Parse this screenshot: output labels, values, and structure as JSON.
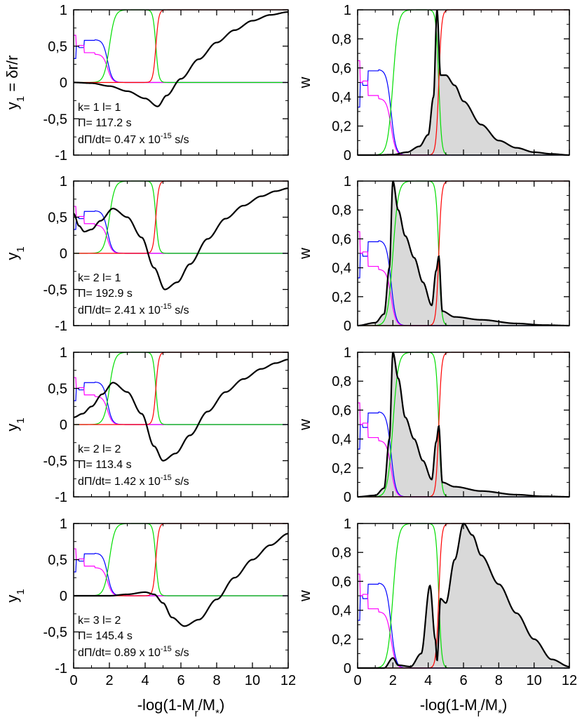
{
  "chart_data": {
    "type": "line",
    "layout": "4x2 grid",
    "xlabel": "-log(1-M_r/M_*)",
    "xlim": [
      0,
      12
    ],
    "ylim": [
      -1,
      1
    ],
    "wlim": [
      0,
      1
    ],
    "xticks": [
      "0",
      "2",
      "4",
      "6",
      "8",
      "10",
      "12"
    ],
    "yticks": [
      "-1",
      "-0,5",
      "0",
      "0,5",
      "1"
    ],
    "wticks": [
      "0",
      "0,2",
      "0,4",
      "0,6",
      "0,8",
      "1"
    ],
    "series_colors": {
      "mode": "#000000",
      "carbon": "#0000ff",
      "oxygen": "#ff00ff",
      "helium": "#00dd00",
      "hydrogen": "#ff0000",
      "fill": "#d9d9d9"
    },
    "panels": [
      {
        "ylabel": "y1 = δr/r",
        "mode": "k= 1 l= 1",
        "period": "Π= 117.2 s",
        "rate_prefix": "dΠ/dt= 0.47 x 10",
        "rate_exp": "-15",
        "rate_unit": " s/s",
        "eig_start": 0.0,
        "eig_nodes": [
          [
            0,
            0
          ],
          [
            1,
            -0.01
          ],
          [
            2,
            -0.05
          ],
          [
            3,
            -0.12
          ],
          [
            4,
            -0.22
          ],
          [
            4.7,
            -0.33
          ],
          [
            5.2,
            -0.18
          ],
          [
            6,
            0.05
          ],
          [
            7,
            0.32
          ],
          [
            8,
            0.55
          ],
          [
            9,
            0.72
          ],
          [
            10,
            0.85
          ],
          [
            11,
            0.93
          ],
          [
            12,
            0.97
          ]
        ],
        "weight": [
          [
            0,
            0.0
          ],
          [
            1,
            0.0
          ],
          [
            2,
            0.003
          ],
          [
            2.8,
            0.02
          ],
          [
            3.5,
            0.06
          ],
          [
            4.0,
            0.14
          ],
          [
            4.3,
            0.4
          ],
          [
            4.5,
            1.0
          ],
          [
            4.7,
            0.55
          ],
          [
            5.0,
            0.55
          ],
          [
            5.5,
            0.48
          ],
          [
            6,
            0.37
          ],
          [
            7,
            0.21
          ],
          [
            8,
            0.1
          ],
          [
            9,
            0.05
          ],
          [
            10,
            0.02
          ],
          [
            11,
            0.008
          ],
          [
            12,
            0.0
          ]
        ]
      },
      {
        "ylabel": "y1",
        "mode": "k= 2 l= 1",
        "period": "Π= 192.9 s",
        "rate_prefix": "dΠ/dt= 2.41 x 10",
        "rate_exp": "-15",
        "rate_unit": " s/s",
        "eig_nodes": [
          [
            0,
            0.55
          ],
          [
            0.3,
            0.38
          ],
          [
            0.6,
            0.3
          ],
          [
            1.0,
            0.33
          ],
          [
            1.5,
            0.45
          ],
          [
            2.2,
            0.62
          ],
          [
            3,
            0.5
          ],
          [
            3.8,
            0.22
          ],
          [
            4.5,
            -0.2
          ],
          [
            5.1,
            -0.5
          ],
          [
            5.8,
            -0.4
          ],
          [
            6.5,
            -0.15
          ],
          [
            7.5,
            0.2
          ],
          [
            8.5,
            0.48
          ],
          [
            9.5,
            0.66
          ],
          [
            10.5,
            0.79
          ],
          [
            11.3,
            0.86
          ],
          [
            12,
            0.9
          ]
        ],
        "weight": [
          [
            0,
            0.0
          ],
          [
            1.0,
            0.02
          ],
          [
            1.5,
            0.08
          ],
          [
            1.8,
            0.4
          ],
          [
            2.0,
            1.0
          ],
          [
            2.3,
            0.8
          ],
          [
            2.7,
            0.62
          ],
          [
            3.2,
            0.47
          ],
          [
            3.7,
            0.3
          ],
          [
            4.2,
            0.14
          ],
          [
            4.45,
            0.38
          ],
          [
            4.6,
            0.48
          ],
          [
            4.8,
            0.1
          ],
          [
            5.5,
            0.06
          ],
          [
            7,
            0.04
          ],
          [
            9,
            0.015
          ],
          [
            10.5,
            0.004
          ],
          [
            12,
            0.0
          ]
        ]
      },
      {
        "ylabel": "y1",
        "mode": "k= 2 l= 2",
        "period": "Π= 113.4 s",
        "rate_prefix": "dΠ/dt= 1.42 x 10",
        "rate_exp": "-15",
        "rate_unit": " s/s",
        "eig_nodes": [
          [
            0,
            0.1
          ],
          [
            0.5,
            0.15
          ],
          [
            1.0,
            0.25
          ],
          [
            1.6,
            0.42
          ],
          [
            2.2,
            0.58
          ],
          [
            3,
            0.45
          ],
          [
            3.8,
            0.15
          ],
          [
            4.5,
            -0.3
          ],
          [
            5.0,
            -0.5
          ],
          [
            5.7,
            -0.4
          ],
          [
            6.5,
            -0.15
          ],
          [
            7.5,
            0.18
          ],
          [
            8.5,
            0.45
          ],
          [
            9.5,
            0.63
          ],
          [
            10.5,
            0.77
          ],
          [
            11.3,
            0.85
          ],
          [
            12,
            0.9
          ]
        ],
        "weight": [
          [
            0,
            0.0
          ],
          [
            1.0,
            0.01
          ],
          [
            1.5,
            0.06
          ],
          [
            1.8,
            0.4
          ],
          [
            2.0,
            1.0
          ],
          [
            2.3,
            0.82
          ],
          [
            2.7,
            0.55
          ],
          [
            3.2,
            0.4
          ],
          [
            3.7,
            0.25
          ],
          [
            4.2,
            0.12
          ],
          [
            4.45,
            0.38
          ],
          [
            4.6,
            0.49
          ],
          [
            4.8,
            0.1
          ],
          [
            5.5,
            0.07
          ],
          [
            7,
            0.04
          ],
          [
            9,
            0.015
          ],
          [
            10.5,
            0.004
          ],
          [
            12,
            0.0
          ]
        ]
      },
      {
        "ylabel": "y1",
        "mode": "k= 3 l= 2",
        "period": "Π= 145.4 s",
        "rate_prefix": "dΠ/dt= 0.89 x 10",
        "rate_exp": "-15",
        "rate_unit": " s/s",
        "eig_nodes": [
          [
            0,
            0.0
          ],
          [
            1,
            0.0
          ],
          [
            2,
            0.0
          ],
          [
            3,
            0.02
          ],
          [
            4,
            0.05
          ],
          [
            4.5,
            0.02
          ],
          [
            5,
            -0.1
          ],
          [
            5.5,
            -0.3
          ],
          [
            6.2,
            -0.42
          ],
          [
            7,
            -0.33
          ],
          [
            8,
            -0.05
          ],
          [
            9,
            0.25
          ],
          [
            10,
            0.5
          ],
          [
            11,
            0.7
          ],
          [
            12,
            0.86
          ]
        ],
        "weight": [
          [
            0,
            0.0
          ],
          [
            1.5,
            0.0
          ],
          [
            2.0,
            0.07
          ],
          [
            2.3,
            0.02
          ],
          [
            3.0,
            0.01
          ],
          [
            3.6,
            0.1
          ],
          [
            4.1,
            0.57
          ],
          [
            4.4,
            0.2
          ],
          [
            4.5,
            0.05
          ],
          [
            4.7,
            0.48
          ],
          [
            5.0,
            0.45
          ],
          [
            5.5,
            0.75
          ],
          [
            6.0,
            1.0
          ],
          [
            6.5,
            0.92
          ],
          [
            7,
            0.78
          ],
          [
            8,
            0.58
          ],
          [
            9,
            0.38
          ],
          [
            10,
            0.2
          ],
          [
            11,
            0.06
          ],
          [
            12,
            0.01
          ]
        ]
      }
    ]
  }
}
